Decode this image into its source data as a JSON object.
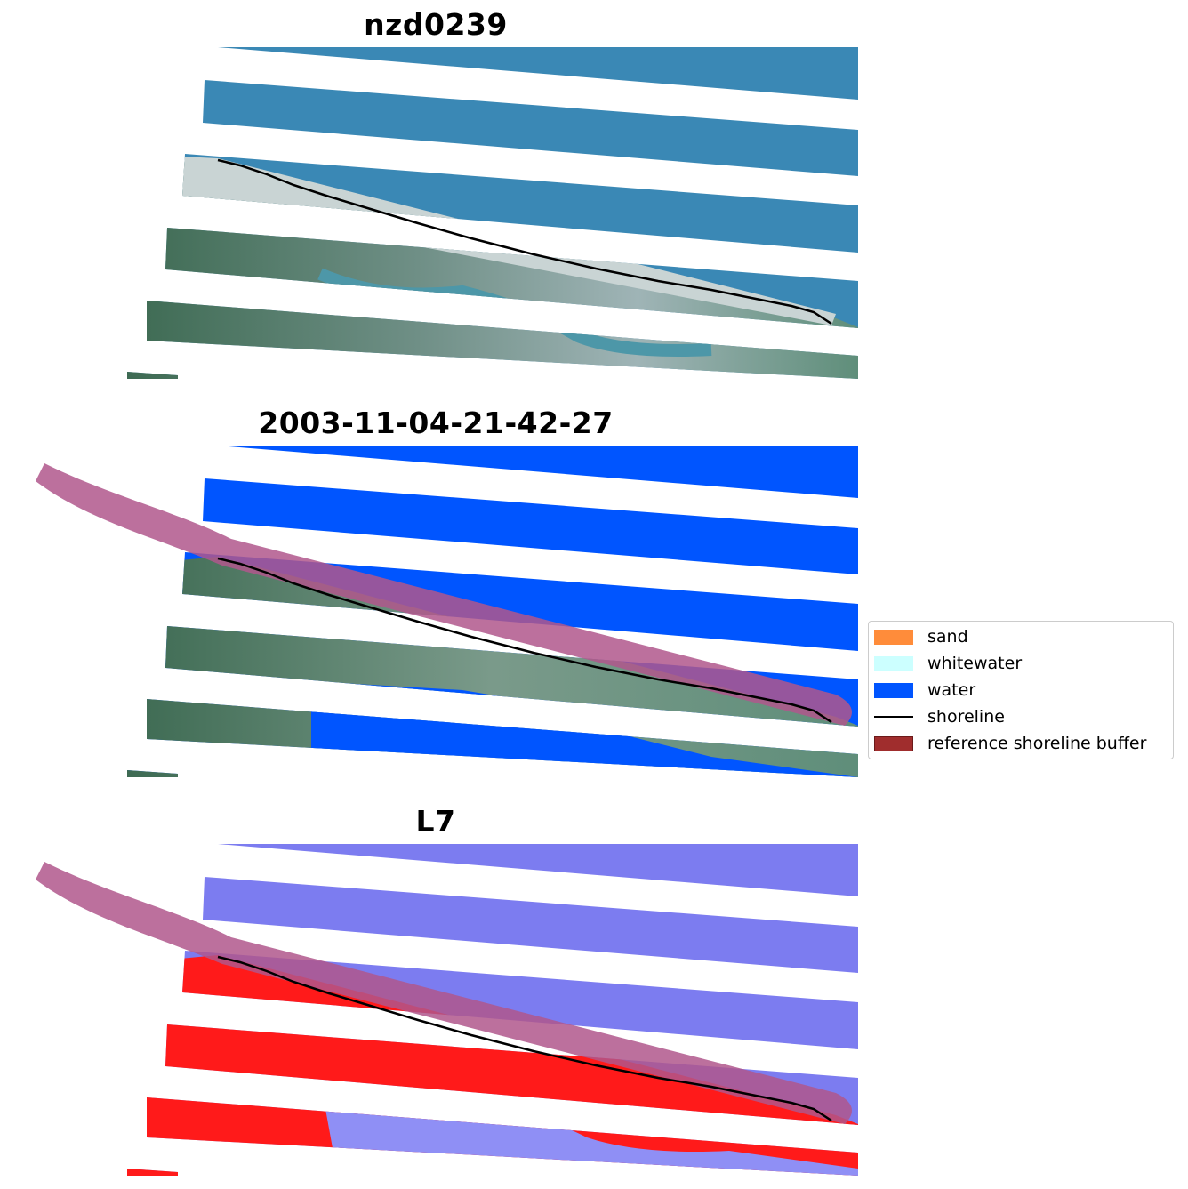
{
  "panels": [
    {
      "title": "nzd0239"
    },
    {
      "title": "2003-11-04-21-42-27"
    },
    {
      "title": "L7"
    }
  ],
  "legend": {
    "items": [
      {
        "label": "sand",
        "color": "#ff8c3a",
        "kind": "patch"
      },
      {
        "label": "whitewater",
        "color": "#ccffff",
        "kind": "patch"
      },
      {
        "label": "water",
        "color": "#0055ff",
        "kind": "patch"
      },
      {
        "label": "shoreline",
        "color": "#000000",
        "kind": "line"
      },
      {
        "label": "reference shoreline buffer",
        "color": "#a02d2d",
        "kind": "patch"
      }
    ]
  },
  "colors": {
    "buffer": "#b0578c",
    "ocean_rgb": "#3a88b5",
    "land_rgb": "#4a7a5a",
    "water_class": "#0055ff",
    "water_index_low": "#7c7cf0",
    "water_index_high": "#ff1a1a"
  }
}
